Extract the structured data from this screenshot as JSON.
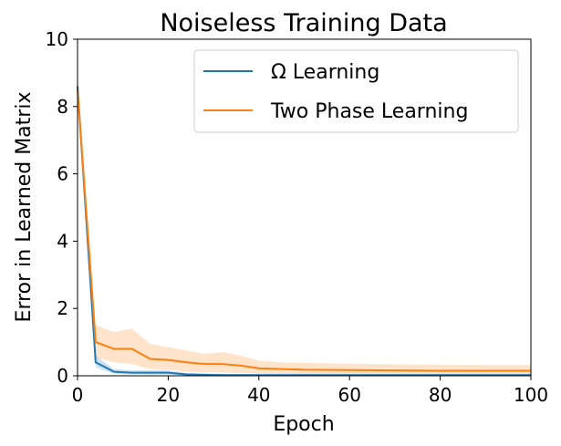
{
  "chart_data": {
    "type": "line",
    "title": "Noiseless Training Data",
    "xlabel": "Epoch",
    "ylabel": "Error in Learned Matrix",
    "xlim": [
      0,
      100
    ],
    "ylim": [
      0,
      10
    ],
    "xticks": [
      0,
      20,
      40,
      60,
      80,
      100
    ],
    "yticks": [
      0,
      2,
      4,
      6,
      8,
      10
    ],
    "grid": false,
    "legend_position": "top-right",
    "series": [
      {
        "name": "Ω Learning",
        "color": "#1f77b4",
        "x": [
          0,
          4,
          8,
          12,
          16,
          20,
          24,
          28,
          32,
          36,
          40,
          50,
          60,
          70,
          80,
          90,
          100
        ],
        "y": [
          8.6,
          0.4,
          0.12,
          0.09,
          0.09,
          0.09,
          0.04,
          0.03,
          0.02,
          0.02,
          0.02,
          0.02,
          0.02,
          0.02,
          0.02,
          0.02,
          0.02
        ],
        "lower": [
          8.4,
          0.25,
          0.06,
          0.04,
          0.04,
          0.04,
          0.01,
          0.01,
          0.01,
          0.01,
          0.01,
          0.01,
          0.01,
          0.01,
          0.01,
          0.01,
          0.01
        ],
        "upper": [
          8.8,
          0.6,
          0.2,
          0.16,
          0.16,
          0.16,
          0.08,
          0.06,
          0.05,
          0.05,
          0.05,
          0.05,
          0.05,
          0.05,
          0.05,
          0.05,
          0.05
        ]
      },
      {
        "name": "Two Phase Learning",
        "color": "#ff7f0e",
        "x": [
          0,
          4,
          8,
          12,
          16,
          20,
          24,
          28,
          32,
          36,
          40,
          45,
          50,
          60,
          70,
          80,
          90,
          100
        ],
        "y": [
          8.5,
          1.0,
          0.8,
          0.8,
          0.5,
          0.47,
          0.4,
          0.35,
          0.35,
          0.3,
          0.22,
          0.2,
          0.18,
          0.17,
          0.16,
          0.15,
          0.15,
          0.15
        ],
        "lower": [
          8.3,
          0.55,
          0.4,
          0.35,
          0.2,
          0.18,
          0.12,
          0.1,
          0.1,
          0.08,
          0.06,
          0.05,
          0.04,
          0.04,
          0.03,
          0.03,
          0.03,
          0.03
        ],
        "upper": [
          8.7,
          1.5,
          1.3,
          1.4,
          0.95,
          0.85,
          0.75,
          0.65,
          0.7,
          0.6,
          0.45,
          0.4,
          0.38,
          0.36,
          0.34,
          0.33,
          0.32,
          0.32
        ]
      }
    ]
  }
}
